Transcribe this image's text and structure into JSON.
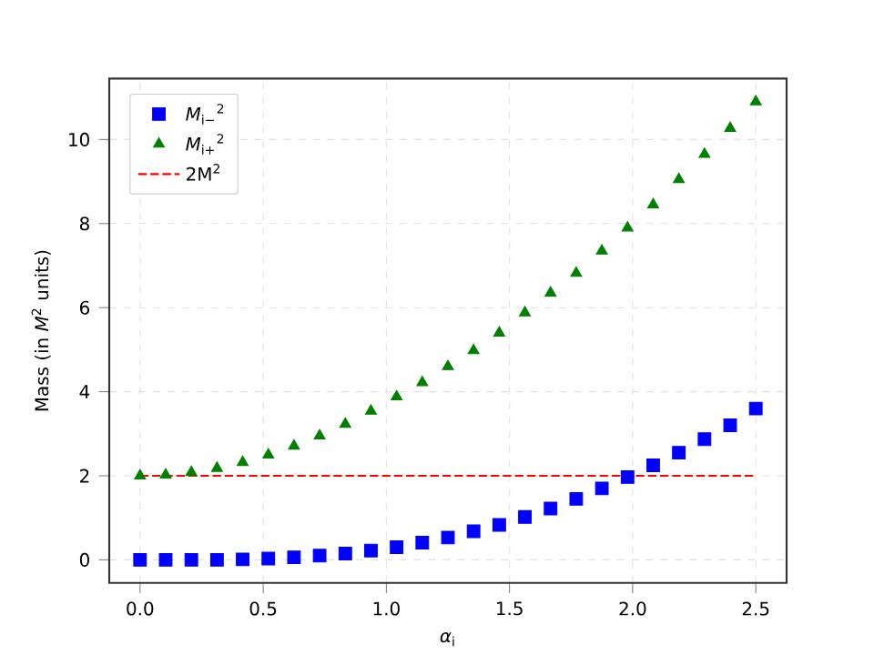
{
  "chart_data": {
    "type": "scatter",
    "xlabel": "*α*$_{i}$",
    "ylabel": "Mass (in *M*$^{2}$ units)",
    "x": [
      0,
      0.10417,
      0.20833,
      0.3125,
      0.41667,
      0.52083,
      0.625,
      0.72917,
      0.83333,
      0.9375,
      1.04167,
      1.14583,
      1.25,
      1.35417,
      1.45833,
      1.5625,
      1.66667,
      1.77083,
      1.875,
      1.97917,
      2.08333,
      2.1875,
      2.29167,
      2.39583,
      2.5
    ],
    "series": [
      {
        "name": "*M*$_{i−}$$^{2}$",
        "color": "#0000ff",
        "marker": "square",
        "values": [
          0,
          0,
          0,
          0,
          0.01,
          0.03,
          0.06,
          0.1,
          0.15,
          0.22,
          0.3,
          0.41,
          0.53,
          0.68,
          0.83,
          1.02,
          1.22,
          1.45,
          1.7,
          1.97,
          2.25,
          2.55,
          2.87,
          3.2,
          3.6
        ]
      },
      {
        "name": "*M*$_{i+}$$^{2}$",
        "color": "#008000",
        "marker": "triangle",
        "values": [
          2.0,
          2.02,
          2.08,
          2.18,
          2.32,
          2.5,
          2.71,
          2.95,
          3.23,
          3.54,
          3.88,
          4.22,
          4.6,
          4.98,
          5.4,
          5.88,
          6.35,
          6.82,
          7.35,
          7.9,
          8.45,
          9.05,
          9.65,
          10.27,
          10.9
        ]
      },
      {
        "name": "2M$^{2}$",
        "type": "line",
        "color": "#ff0000",
        "marker": "none",
        "line_style": "dashed",
        "x": [
          0,
          2.5
        ],
        "values": [
          2,
          2
        ]
      }
    ],
    "xlim": [
      -0.125,
      2.625
    ],
    "ylim": [
      -0.55,
      11.45
    ],
    "xticks": [
      {
        "value": 0,
        "label": "0.0"
      },
      0.5,
      {
        "value": 1,
        "label": "1.0"
      },
      1.5,
      {
        "value": 2,
        "label": "2.0"
      },
      2.5
    ],
    "yticks": [
      0,
      2,
      4,
      6,
      8,
      10
    ],
    "grid": true,
    "legend": "top left"
  }
}
